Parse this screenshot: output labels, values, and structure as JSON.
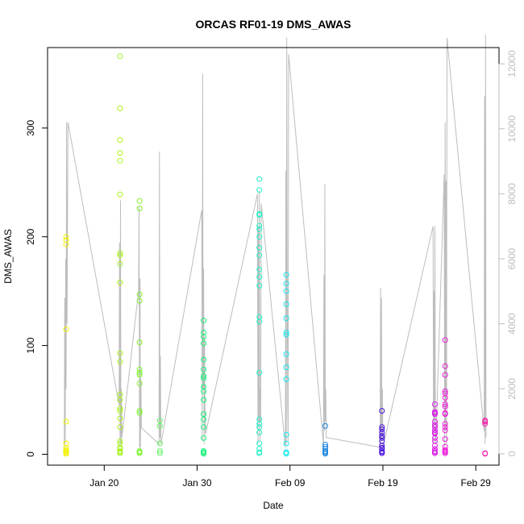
{
  "chart_data": {
    "type": "scatter",
    "title": "ORCAS RF01-19 DMS_AWAS",
    "xlabel": "Date",
    "ylabel": "DMS_AWAS",
    "x_tick_labels": [
      "Jan 20",
      "Jan 30",
      "Feb 09",
      "Feb 19",
      "Feb 29"
    ],
    "x_tick_days": [
      20,
      30,
      40,
      50,
      60
    ],
    "xlim_days": [
      13.9,
      62.5
    ],
    "ylim": [
      -10,
      374
    ],
    "y_ticks": [
      0,
      100,
      200,
      300
    ],
    "y2_ticks": [
      0,
      2000,
      4000,
      6000,
      8000,
      10000,
      12000
    ],
    "y2lim": [
      -350,
      12500
    ],
    "colors": {
      "background": "#ffffff",
      "frame": "#000000",
      "altitude_line": "#bdbdbd",
      "right_axis": "#bdbdbd"
    },
    "series": [
      {
        "color": "#f2f200",
        "x": 15.9,
        "values": [
          200,
          197,
          193,
          115,
          30,
          10,
          6,
          4,
          3,
          2,
          1,
          0.5
        ]
      },
      {
        "color": "#a8f21a",
        "x": 21.7,
        "values": [
          366,
          318,
          289,
          277,
          270,
          239,
          185,
          183,
          175,
          158,
          93,
          85,
          55,
          50,
          42,
          40,
          33,
          25,
          12,
          10,
          6,
          5,
          3,
          2,
          1
        ]
      },
      {
        "color": "#7ff22e",
        "x": 23.8,
        "values": [
          233,
          226,
          147,
          141,
          103,
          78,
          75,
          73,
          65,
          40,
          38,
          3,
          2,
          1
        ]
      },
      {
        "color": "#5ef55e",
        "x": 26.0,
        "values": [
          31,
          26,
          10,
          3,
          1
        ]
      },
      {
        "color": "#17f47a",
        "x": 30.7,
        "values": [
          123,
          112,
          108,
          102,
          87,
          78,
          72,
          70,
          62,
          58,
          50,
          37,
          32,
          25,
          15,
          3,
          2,
          1,
          0.5
        ]
      },
      {
        "color": "#1ff2c7",
        "x": 36.7,
        "values": [
          253,
          243,
          221,
          220,
          210,
          207,
          200,
          190,
          183,
          170,
          163,
          155,
          126,
          122,
          75,
          32,
          28,
          25,
          20,
          10,
          5,
          2,
          1
        ]
      },
      {
        "color": "#17e9ef",
        "x": 39.6,
        "values": [
          165,
          157,
          150,
          138,
          125,
          112,
          110,
          92,
          80,
          69,
          18,
          10,
          2,
          1,
          0.5
        ]
      },
      {
        "color": "#1a86e0",
        "x": 43.8,
        "values": [
          26,
          9,
          7,
          5,
          3,
          2,
          1,
          0.5
        ]
      },
      {
        "color": "#4a14e0",
        "x": 49.9,
        "values": [
          40,
          25,
          23,
          20,
          17,
          15,
          12,
          8,
          6,
          5,
          3,
          2,
          1
        ]
      },
      {
        "color": "#d91ae6",
        "x": 55.6,
        "values": [
          46,
          39,
          38,
          37,
          30,
          27,
          25,
          22,
          20,
          19,
          15,
          12,
          8,
          5,
          3,
          2,
          1
        ]
      },
      {
        "color": "#ee1ad9",
        "x": 56.7,
        "values": [
          105,
          81,
          73,
          58,
          56,
          52,
          46,
          44,
          38,
          37,
          28,
          25,
          22,
          14,
          7,
          4,
          3,
          2,
          1
        ]
      },
      {
        "color": "#f21aa8",
        "x": 61.0,
        "values": [
          31,
          30,
          28,
          1,
          0.5
        ]
      }
    ],
    "altitude_line": {
      "axis": "right",
      "x": [
        15.7,
        15.75,
        15.8,
        15.85,
        15.9,
        15.95,
        16.0,
        16.1,
        21.6,
        21.65,
        21.7,
        21.75,
        21.8,
        21.85,
        21.9,
        23.7,
        23.75,
        23.8,
        23.85,
        23.9,
        23.95,
        24.0,
        25.9,
        25.95,
        26.0,
        26.05,
        26.1,
        30.5,
        30.55,
        30.6,
        30.65,
        30.7,
        30.75,
        30.8,
        30.85,
        30.9,
        36.5,
        36.55,
        36.6,
        36.65,
        36.7,
        36.75,
        36.8,
        36.85,
        36.9,
        39.5,
        39.55,
        39.6,
        39.65,
        39.7,
        39.75,
        39.8,
        39.85,
        43.6,
        43.65,
        43.7,
        43.75,
        43.8,
        43.85,
        43.9,
        49.7,
        49.75,
        49.8,
        49.85,
        49.9,
        49.95,
        50.0,
        55.4,
        55.45,
        55.5,
        55.55,
        55.6,
        55.65,
        55.7,
        56.6,
        56.65,
        56.7,
        56.75,
        56.8,
        56.85,
        56.9,
        60.9,
        60.95,
        61.0,
        61.05,
        61.1
      ],
      "values": [
        0,
        4800,
        300,
        6000,
        2000,
        10200,
        4000,
        10200,
        1500,
        6500,
        200,
        7800,
        300,
        2000,
        500,
        5000,
        7600,
        200,
        5400,
        100,
        2300,
        800,
        300,
        9300,
        500,
        3000,
        300,
        7500,
        400,
        11700,
        2000,
        5700,
        300,
        3600,
        1200,
        600,
        8000,
        300,
        7000,
        1000,
        8100,
        400,
        2000,
        1000,
        7700,
        200,
        8700,
        300,
        12800,
        5000,
        1500,
        400,
        12300,
        300,
        5500,
        700,
        8300,
        1000,
        2000,
        500,
        200,
        5100,
        300,
        4800,
        400,
        2000,
        200,
        7000,
        300,
        5000,
        1000,
        7000,
        500,
        300,
        8600,
        200,
        10200,
        700,
        8400,
        300,
        12800,
        700,
        11000,
        300,
        12900,
        500
      ]
    }
  }
}
